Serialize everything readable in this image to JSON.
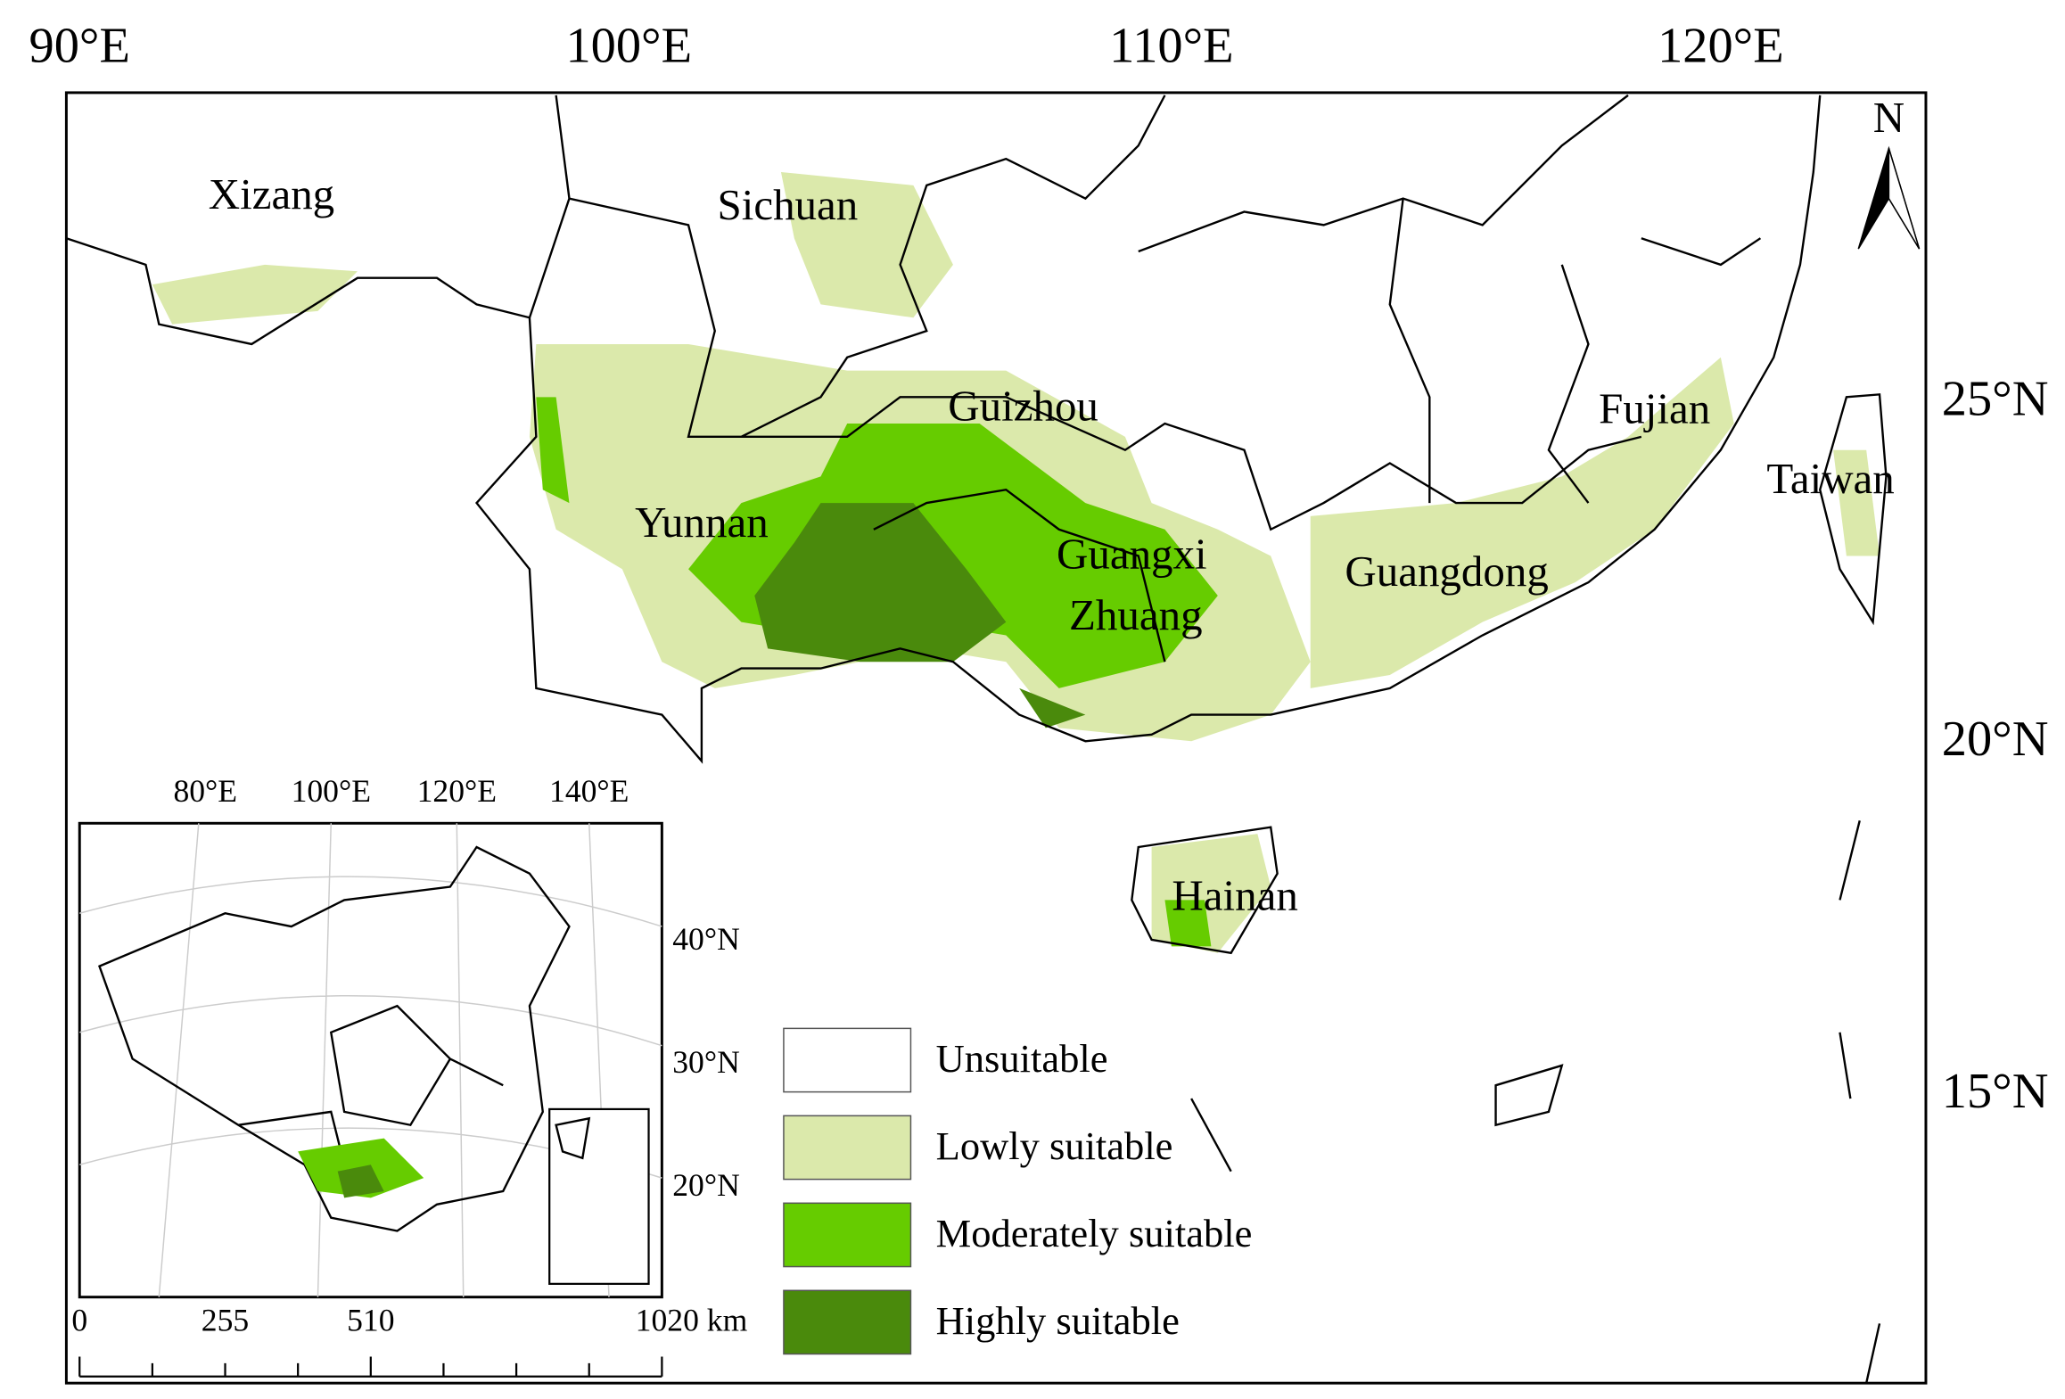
{
  "map": {
    "lon_labels": [
      "90°E",
      "100°E",
      "110°E",
      "120°E"
    ],
    "lat_labels": [
      "25°N",
      "20°N",
      "15°N"
    ],
    "region_labels": [
      "Xizang",
      "Sichuan",
      "Guizhou",
      "Yunnan",
      "Guangxi",
      "Zhuang",
      "Guangdong",
      "Fujian",
      "Taiwan",
      "Hainan"
    ],
    "north": "N",
    "legend": [
      {
        "label": "Unsuitable",
        "color": "#ffffff"
      },
      {
        "label": "Lowly suitable",
        "color": "#dbe9ab"
      },
      {
        "label": "Moderately suitable",
        "color": "#66cc00"
      },
      {
        "label": "Highly suitable",
        "color": "#4a8a0c"
      }
    ],
    "inset": {
      "lon_labels": [
        "80°E",
        "100°E",
        "120°E",
        "140°E"
      ],
      "lat_labels": [
        "40°N",
        "30°N",
        "20°N"
      ]
    },
    "scale_bar": [
      "0",
      "255",
      "510",
      "1020 km"
    ]
  }
}
